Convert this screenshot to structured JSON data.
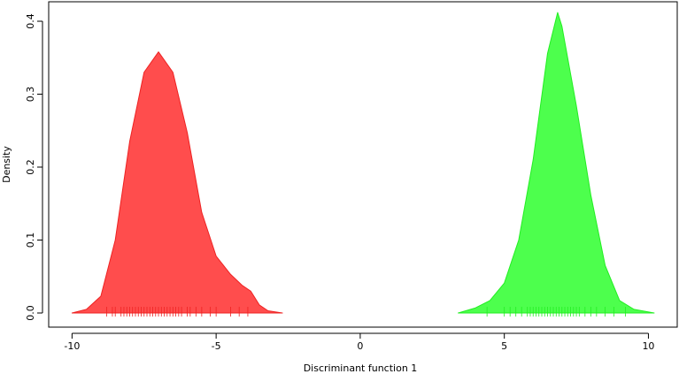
{
  "chart_data": {
    "type": "area",
    "xlabel": "Discriminant function 1",
    "ylabel": "Density",
    "xlim": [
      -10.81,
      11.0
    ],
    "ylim": [
      -0.0194,
      0.4267
    ],
    "xticks": [
      -10,
      -5,
      0,
      5,
      10
    ],
    "yticks": [
      {
        "value": 0,
        "label": "0.0"
      },
      0.1,
      0.2,
      0.3,
      0.4
    ],
    "series": [
      {
        "color": "#ff4d4d",
        "line_color": "#ee2222",
        "x": [
          -10,
          -9.5,
          -9,
          -8.5,
          -8,
          -7.5,
          -7,
          -6.5,
          -6,
          -5.5,
          -5,
          -4.5,
          -4.1,
          -3.8,
          -3.5,
          -3.2,
          -2.7
        ],
        "values": [
          0.0,
          0.005,
          0.023,
          0.1,
          0.235,
          0.33,
          0.358,
          0.33,
          0.247,
          0.138,
          0.078,
          0.053,
          0.038,
          0.03,
          0.011,
          0.003,
          0.0
        ],
        "rug": [
          -8.8,
          -8.6,
          -8.5,
          -8.3,
          -8.2,
          -8.1,
          -8.0,
          -7.9,
          -7.8,
          -7.7,
          -7.6,
          -7.5,
          -7.4,
          -7.3,
          -7.2,
          -7.1,
          -7.0,
          -6.9,
          -6.8,
          -6.7,
          -6.6,
          -6.5,
          -6.4,
          -6.3,
          -6.2,
          -6.0,
          -5.9,
          -5.7,
          -5.5,
          -5.2,
          -5.0,
          -4.5,
          -4.2,
          -3.9
        ]
      },
      {
        "color": "#4dff4d",
        "line_color": "#22ee22",
        "x": [
          3.4,
          4,
          4.5,
          5,
          5.5,
          6,
          6.5,
          6.85,
          7,
          7.5,
          8,
          8.5,
          9,
          9.5,
          10.2
        ],
        "values": [
          0.0,
          0.007,
          0.017,
          0.041,
          0.1,
          0.21,
          0.356,
          0.412,
          0.393,
          0.284,
          0.162,
          0.065,
          0.017,
          0.005,
          0.0
        ],
        "rug": [
          4.4,
          5.0,
          5.2,
          5.4,
          5.6,
          5.8,
          5.9,
          6.0,
          6.1,
          6.2,
          6.3,
          6.4,
          6.5,
          6.6,
          6.7,
          6.8,
          6.9,
          7.0,
          7.1,
          7.2,
          7.3,
          7.4,
          7.5,
          7.6,
          7.8,
          8.0,
          8.2,
          8.5,
          8.8,
          9.2
        ]
      }
    ]
  }
}
